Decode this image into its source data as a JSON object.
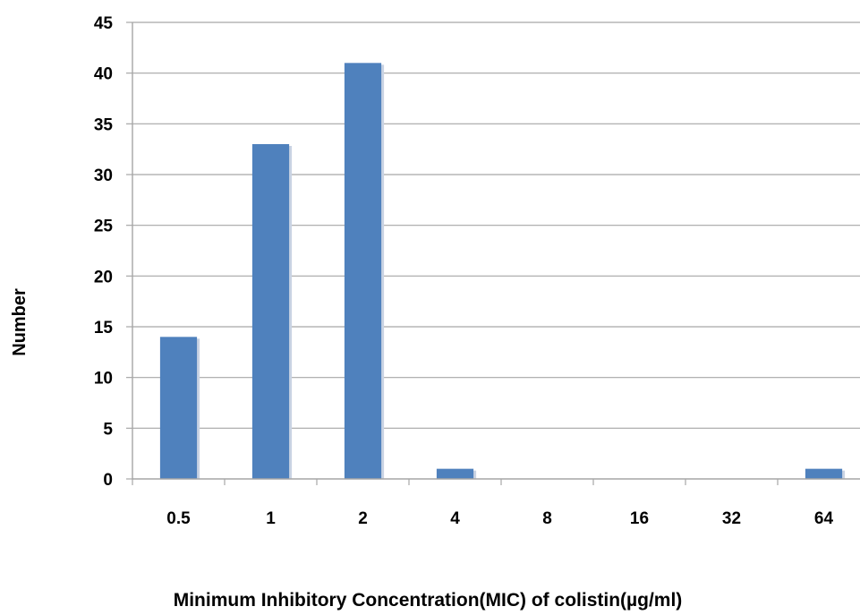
{
  "chart_data": {
    "type": "bar",
    "title": "",
    "xlabel": "Minimum Inhibitory Concentration(MIC) of colistin(µg/ml)",
    "ylabel": "Number",
    "categories": [
      "0.5",
      "1",
      "2",
      "4",
      "8",
      "16",
      "32",
      "64"
    ],
    "values": [
      14,
      33,
      41,
      1,
      0,
      0,
      0,
      1
    ],
    "ylim": [
      0,
      45
    ],
    "yticks": [
      0,
      5,
      10,
      15,
      20,
      25,
      30,
      35,
      40,
      45
    ],
    "grid": true,
    "legend": "none",
    "bar_color": "#4f81bd",
    "bar_shadow_color": "#c9d3e3",
    "grid_color": "#a6a6a6"
  }
}
